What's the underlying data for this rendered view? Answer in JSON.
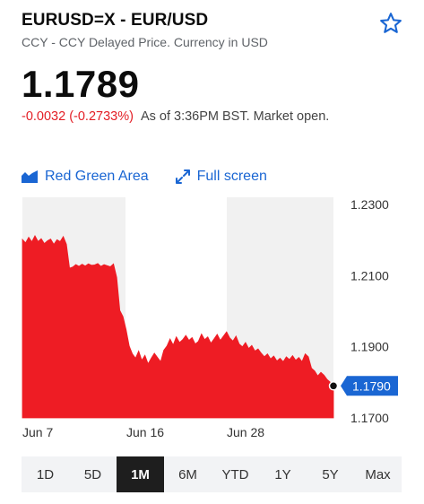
{
  "header": {
    "title": "EURUSD=X - EUR/USD",
    "subtitle": "CCY - CCY Delayed Price. Currency in USD",
    "star_icon": "star-outline-icon"
  },
  "quote": {
    "price": "1.1789",
    "change": "-0.0032 (-0.2733%)",
    "as_of": "As of 3:36PM BST. Market open."
  },
  "controls": {
    "chart_style_label": "Red Green Area",
    "chart_style_icon": "area-chart-icon",
    "fullscreen_label": "Full screen",
    "fullscreen_icon": "expand-arrows-icon"
  },
  "colors": {
    "accent": "#1a66d3",
    "down": "#e31e25",
    "area": "#ee1c24",
    "band": "#f1f1f1"
  },
  "chart_data": {
    "type": "area",
    "x_tick_labels": [
      "Jun 7",
      "Jun 16",
      "Jun 28"
    ],
    "y_tick_labels": [
      "1.2300",
      "1.2100",
      "1.1900",
      "1.1700"
    ],
    "ylim": [
      1.17,
      1.23
    ],
    "baseline": 1.17,
    "current_value_label": "1.1790",
    "values": [
      1.2202,
      1.2192,
      1.2208,
      1.2195,
      1.2212,
      1.2196,
      1.2204,
      1.219,
      1.2198,
      1.2203,
      1.2188,
      1.2201,
      1.2196,
      1.221,
      1.2188,
      1.2121,
      1.2124,
      1.2131,
      1.2126,
      1.2132,
      1.2127,
      1.2133,
      1.2129,
      1.213,
      1.2134,
      1.2126,
      1.2131,
      1.2128,
      1.2125,
      1.2133,
      1.2095,
      1.2002,
      1.1985,
      1.1948,
      1.1902,
      1.188,
      1.1868,
      1.1888,
      1.1862,
      1.1876,
      1.1852,
      1.1868,
      1.1882,
      1.187,
      1.1858,
      1.189,
      1.1902,
      1.1922,
      1.1905,
      1.1928,
      1.1912,
      1.192,
      1.1932,
      1.1918,
      1.1926,
      1.1908,
      1.1915,
      1.1936,
      1.192,
      1.1928,
      1.191,
      1.1922,
      1.1935,
      1.1918,
      1.193,
      1.1942,
      1.1925,
      1.1916,
      1.193,
      1.1908,
      1.19,
      1.1912,
      1.1895,
      1.1904,
      1.1888,
      1.1894,
      1.1882,
      1.1872,
      1.188,
      1.1866,
      1.1874,
      1.186,
      1.1868,
      1.1858,
      1.1872,
      1.1864,
      1.1875,
      1.1862,
      1.187,
      1.1858,
      1.188,
      1.1872,
      1.184,
      1.1832,
      1.1818,
      1.1828,
      1.182,
      1.1808,
      1.18,
      1.179
    ],
    "grid": false
  },
  "ranges": {
    "items": [
      "1D",
      "5D",
      "1M",
      "6M",
      "YTD",
      "1Y",
      "5Y",
      "Max"
    ],
    "active": "1M"
  }
}
